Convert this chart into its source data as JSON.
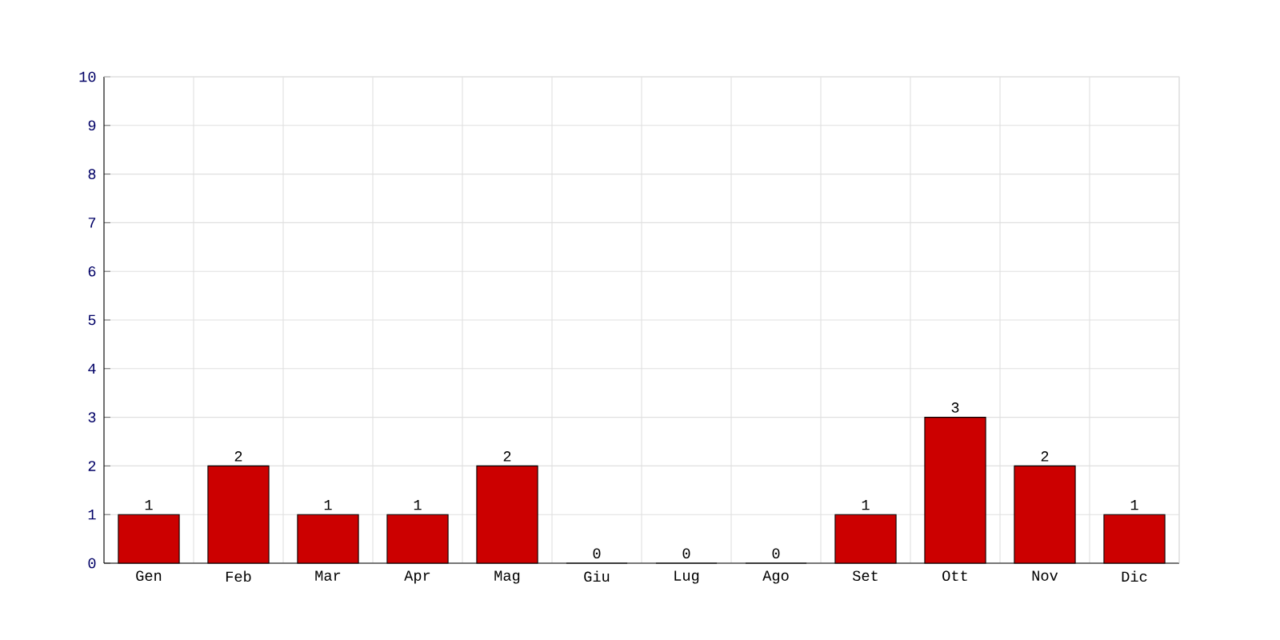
{
  "chart_data": {
    "type": "bar",
    "categories": [
      "Gen",
      "Feb",
      "Mar",
      "Apr",
      "Mag",
      "Giu",
      "Lug",
      "Ago",
      "Set",
      "Ott",
      "Nov",
      "Dic"
    ],
    "values": [
      1,
      2,
      1,
      1,
      2,
      0,
      0,
      0,
      1,
      3,
      2,
      1
    ],
    "color": "#cc0000",
    "ylim": [
      0,
      10
    ],
    "yticks": [
      0,
      1,
      2,
      3,
      4,
      5,
      6,
      7,
      8,
      9,
      10
    ],
    "grid": true,
    "data_labels": true
  }
}
